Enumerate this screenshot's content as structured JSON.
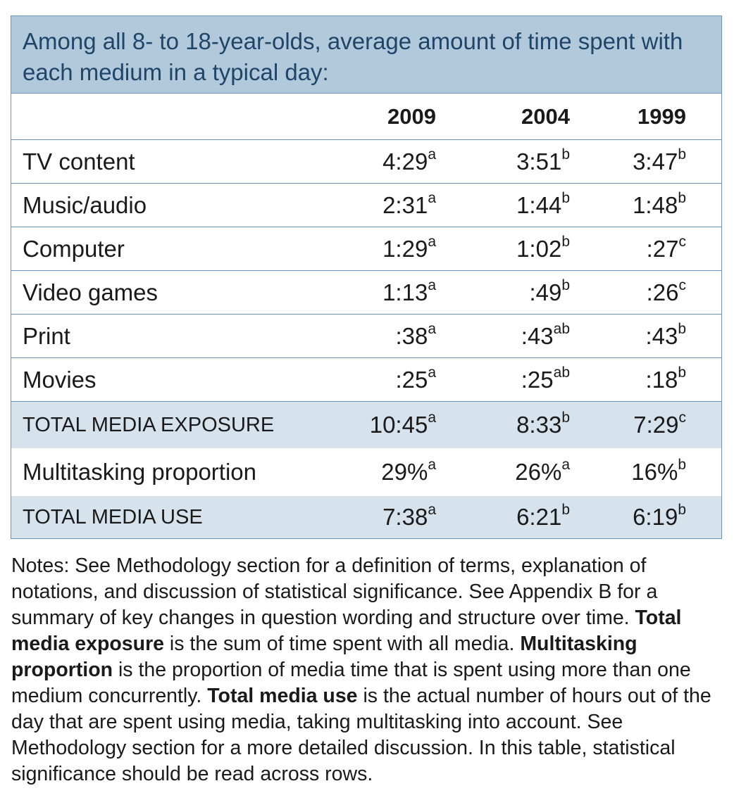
{
  "title": "Among all 8- to 18-year-olds, average amount of time spent with each medium in a typical day:",
  "columns": [
    "2009",
    "2004",
    "1999"
  ],
  "rows": [
    {
      "label": "TV content",
      "cells": [
        {
          "v": "4:29",
          "s": "a"
        },
        {
          "v": "3:51",
          "s": "b"
        },
        {
          "v": "3:47",
          "s": "b"
        }
      ]
    },
    {
      "label": "Music/audio",
      "cells": [
        {
          "v": "2:31",
          "s": "a"
        },
        {
          "v": "1:44",
          "s": "b"
        },
        {
          "v": "1:48",
          "s": "b"
        }
      ]
    },
    {
      "label": "Computer",
      "cells": [
        {
          "v": "1:29",
          "s": "a"
        },
        {
          "v": "1:02",
          "s": "b"
        },
        {
          "v": ":27",
          "s": "c"
        }
      ]
    },
    {
      "label": "Video games",
      "cells": [
        {
          "v": "1:13",
          "s": "a"
        },
        {
          "v": ":49",
          "s": "b"
        },
        {
          "v": ":26",
          "s": "c"
        }
      ]
    },
    {
      "label": "Print",
      "cells": [
        {
          "v": ":38",
          "s": "a"
        },
        {
          "v": ":43",
          "s": "ab"
        },
        {
          "v": ":43",
          "s": "b"
        }
      ]
    },
    {
      "label": "Movies",
      "cells": [
        {
          "v": ":25",
          "s": "a"
        },
        {
          "v": ":25",
          "s": "ab"
        },
        {
          "v": ":18",
          "s": "b"
        }
      ]
    },
    {
      "label": "TOTAL MEDIA EXPOSURE",
      "cells": [
        {
          "v": "10:45",
          "s": "a"
        },
        {
          "v": "8:33",
          "s": "b"
        },
        {
          "v": "7:29",
          "s": "c"
        }
      ]
    },
    {
      "label": "Multitasking proportion",
      "cells": [
        {
          "v": "29%",
          "s": "a"
        },
        {
          "v": "26%",
          "s": "a"
        },
        {
          "v": "16%",
          "s": "b"
        }
      ]
    },
    {
      "label": "TOTAL MEDIA USE",
      "cells": [
        {
          "v": "7:38",
          "s": "a"
        },
        {
          "v": "6:21",
          "s": "b"
        },
        {
          "v": "6:19",
          "s": "b"
        }
      ]
    }
  ],
  "notes": {
    "part1": "Notes:  See Methodology section for a definition of terms, explanation of notations, and discussion of statistical significance. See Appendix B for a summary of key changes in question wording and structure over time. ",
    "bold1": "Total media exposure",
    "part2": " is the sum of time spent with all media. ",
    "bold2": "Multitasking proportion",
    "part3": " is the proportion of media time that is spent using more than one medium concurrently. ",
    "bold3": "Total media use",
    "part4": " is the actual number of hours out of the day that are spent using media, taking multitasking into account. See Methodology section for a more detailed discussion. In this table, statistical significance should be read across rows."
  }
}
